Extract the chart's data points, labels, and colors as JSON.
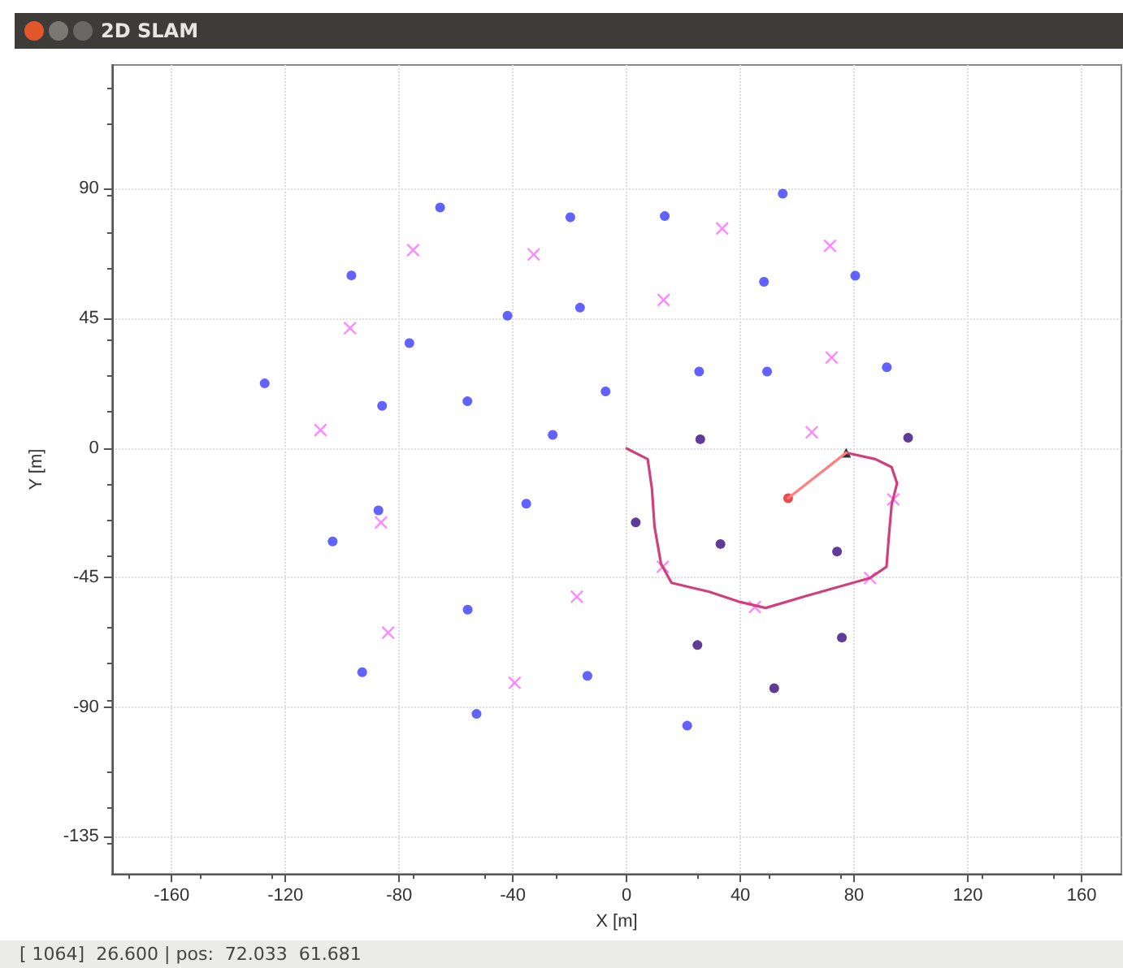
{
  "chart_data": {
    "type": "scatter",
    "title": "2D SLAM",
    "xlabel": "X [m]",
    "ylabel": "Y [m]",
    "xlim": [
      -181,
      174
    ],
    "ylim": [
      -148,
      133
    ],
    "xticks": [
      -160,
      -120,
      -80,
      -40,
      0,
      40,
      80,
      120,
      160
    ],
    "yticks": [
      -135,
      -90,
      -45,
      0,
      45,
      90
    ],
    "grid": true,
    "annotations": [
      "[ 1064]  26.600 | pos:  72.033  61.681"
    ],
    "series": [
      {
        "marker": "circle",
        "color": "#3b3bff",
        "x": [
          -65.6,
          -19.8,
          13.4,
          54.9,
          -96.8,
          -41.9,
          -16.4,
          48.3,
          80.4,
          -76.4,
          -127.3,
          -86.0,
          -56.0,
          -7.4,
          25.5,
          49.4,
          91.5,
          -26.0,
          -87.3,
          -103.4,
          -35.3,
          -55.9,
          -93.0,
          -52.8,
          -13.8,
          21.3
        ],
        "values": [
          83.5,
          80.1,
          80.5,
          88.3,
          59.9,
          45.9,
          48.7,
          57.7,
          59.8,
          36.4,
          22.4,
          14.6,
          16.2,
          19.6,
          26.5,
          26.5,
          28.0,
          4.5,
          -21.7,
          -32.5,
          -19.4,
          -56.2,
          -77.9,
          -92.4,
          -79.2,
          -96.5
        ]
      },
      {
        "marker": "cross",
        "color": "#ff66ff",
        "x": [
          -75.1,
          -32.7,
          -97.3,
          -107.7,
          33.6,
          71.5,
          13.0,
          72.1,
          65.1,
          -86.4,
          -83.9,
          -39.4,
          -17.5,
          12.7,
          45.1,
          85.6,
          93.8
        ],
        "values": [
          68.7,
          67.2,
          41.6,
          6.2,
          76.2,
          70.2,
          51.4,
          31.4,
          5.4,
          -25.9,
          -64.2,
          -81.6,
          -51.7,
          -41.3,
          -55.3,
          -45.2,
          -17.9
        ]
      },
      {
        "marker": "circle",
        "color": "#3a0a80",
        "x": [
          25.9,
          99.0,
          3.2,
          33.0,
          74.0,
          24.9,
          75.7,
          51.9
        ],
        "values": [
          3.0,
          3.5,
          -25.9,
          -33.4,
          -36.0,
          -68.5,
          -65.9,
          -83.5
        ]
      },
      {
        "type": "line",
        "marker": "none",
        "line_style": "solid",
        "color": "#d0407a",
        "x": [
          0,
          7.4,
          8.9,
          9.8,
          12.1,
          15.8,
          29.1,
          39.4,
          48.9,
          63.0,
          76.2,
          85.6,
          91.4,
          92.2,
          93.2,
          95.1,
          93.2,
          87.5,
          77.2
        ],
        "values": [
          -0.2,
          -3.9,
          -14.2,
          -27.3,
          -40.3,
          -46.9,
          -50.0,
          -53.4,
          -55.6,
          -51.5,
          -47.8,
          -45.2,
          -41.3,
          -31.0,
          -19.8,
          -12.3,
          -6.7,
          -3.9,
          -1.7
        ]
      },
      {
        "type": "line",
        "marker": "none",
        "line_style": "solid",
        "color": "#ff7f7f",
        "x": [
          56.8,
          77.2
        ],
        "values": [
          -17.5,
          -1.7
        ]
      },
      {
        "marker": "circle",
        "color": "#e02020",
        "x": [
          56.8
        ],
        "values": [
          -17.5
        ]
      },
      {
        "marker": "triangle",
        "color": "#000000",
        "x": [
          77.2
        ],
        "values": [
          -1.7
        ]
      }
    ]
  }
}
